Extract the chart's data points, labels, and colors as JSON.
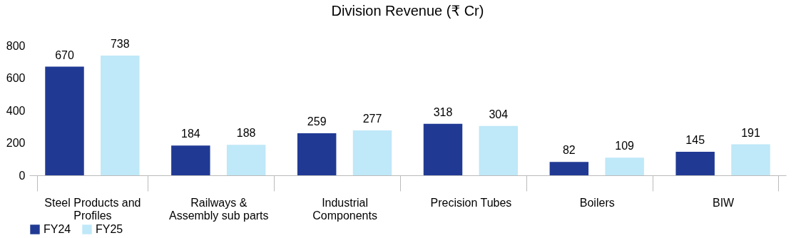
{
  "chart_data": {
    "type": "bar",
    "title": "Division Revenue (₹ Cr)",
    "categories": [
      "Steel Products and Profiles",
      "Railways & Assembly sub parts",
      "Industrial Components",
      "Precision Tubes",
      "Boilers",
      "BIW"
    ],
    "series": [
      {
        "name": "FY24",
        "color": "#203a94",
        "values": [
          670,
          184,
          259,
          318,
          82,
          145
        ]
      },
      {
        "name": "FY25",
        "color": "#bfe8f8",
        "values": [
          738,
          188,
          277,
          304,
          109,
          191
        ]
      }
    ],
    "ylim": [
      0,
      800
    ],
    "yticks": [
      0,
      200,
      400,
      600,
      800
    ],
    "grid": false,
    "legend": "bottom",
    "data_labels": true
  }
}
